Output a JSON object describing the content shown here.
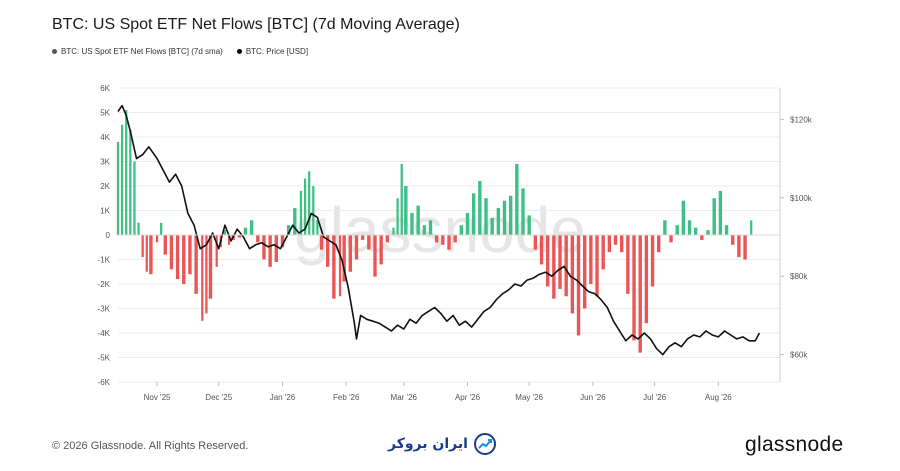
{
  "chart_data": {
    "type": "bar+line",
    "title": "BTC: US Spot ETF Net Flows [BTC] (7d Moving Average)",
    "legend": [
      {
        "label": "BTC: US Spot ETF Net Flows [BTC] (7d sma)",
        "color": "#555555"
      },
      {
        "label": "BTC: Price [USD]",
        "color": "#000000"
      }
    ],
    "left_axis": {
      "ticks": [
        "6K",
        "5K",
        "4K",
        "3K",
        "2K",
        "1K",
        "0",
        "-1K",
        "-2K",
        "-3K",
        "-4K",
        "-5K",
        "-6K"
      ],
      "ylim": [
        -6000,
        6000
      ]
    },
    "right_axis": {
      "ticks": [
        "$120k",
        "$100k",
        "$80k",
        "$60k"
      ],
      "ylim": [
        53000,
        128000
      ]
    },
    "x_ticks": [
      "Nov '25",
      "Dec '25",
      "Jan '26",
      "Feb '26",
      "Mar '26",
      "Apr '26",
      "May '26",
      "Jun '26",
      "Jul '26",
      "Aug '26"
    ],
    "x_range": [
      "2025-10-13",
      "2026-08-31"
    ],
    "colors": {
      "positive": "#3dbf86",
      "negative": "#ea5656",
      "price": "#111111"
    },
    "net_flows_7d_sma": [
      [
        "2025-10-13",
        3800
      ],
      [
        "2025-10-15",
        4500
      ],
      [
        "2025-10-17",
        5100
      ],
      [
        "2025-10-19",
        4300
      ],
      [
        "2025-10-21",
        3000
      ],
      [
        "2025-10-23",
        500
      ],
      [
        "2025-10-25",
        -900
      ],
      [
        "2025-10-27",
        -1500
      ],
      [
        "2025-10-29",
        -1600
      ],
      [
        "2025-11-01",
        -300
      ],
      [
        "2025-11-03",
        500
      ],
      [
        "2025-11-05",
        -800
      ],
      [
        "2025-11-08",
        -1400
      ],
      [
        "2025-11-11",
        -1800
      ],
      [
        "2025-11-14",
        -2000
      ],
      [
        "2025-11-17",
        -1600
      ],
      [
        "2025-11-20",
        -2400
      ],
      [
        "2025-11-23",
        -3500
      ],
      [
        "2025-11-25",
        -3200
      ],
      [
        "2025-11-27",
        -2600
      ],
      [
        "2025-11-30",
        -1300
      ],
      [
        "2025-12-02",
        -500
      ],
      [
        "2025-12-04",
        200
      ],
      [
        "2025-12-06",
        -400
      ],
      [
        "2025-12-08",
        -200
      ],
      [
        "2025-12-11",
        -100
      ],
      [
        "2025-12-14",
        300
      ],
      [
        "2025-12-17",
        600
      ],
      [
        "2025-12-20",
        -300
      ],
      [
        "2025-12-23",
        -1000
      ],
      [
        "2025-12-26",
        -1300
      ],
      [
        "2025-12-29",
        -1100
      ],
      [
        "2026-01-01",
        -500
      ],
      [
        "2026-01-04",
        400
      ],
      [
        "2026-01-07",
        1100
      ],
      [
        "2026-01-10",
        1800
      ],
      [
        "2026-01-12",
        2300
      ],
      [
        "2026-01-14",
        2600
      ],
      [
        "2026-01-16",
        2000
      ],
      [
        "2026-01-18",
        600
      ],
      [
        "2026-01-20",
        -600
      ],
      [
        "2026-01-23",
        -1300
      ],
      [
        "2026-01-26",
        -2600
      ],
      [
        "2026-01-29",
        -2500
      ],
      [
        "2026-01-31",
        -1900
      ],
      [
        "2026-02-03",
        -1500
      ],
      [
        "2026-02-06",
        -1000
      ],
      [
        "2026-02-09",
        -200
      ],
      [
        "2026-02-12",
        -600
      ],
      [
        "2026-02-15",
        -1700
      ],
      [
        "2026-02-18",
        -1200
      ],
      [
        "2026-02-21",
        -300
      ],
      [
        "2026-02-24",
        300
      ],
      [
        "2026-02-26",
        1500
      ],
      [
        "2026-02-28",
        2900
      ],
      [
        "2026-03-02",
        2000
      ],
      [
        "2026-03-05",
        900
      ],
      [
        "2026-03-08",
        1200
      ],
      [
        "2026-03-11",
        400
      ],
      [
        "2026-03-14",
        600
      ],
      [
        "2026-03-17",
        -300
      ],
      [
        "2026-03-20",
        -400
      ],
      [
        "2026-03-23",
        -600
      ],
      [
        "2026-03-26",
        -300
      ],
      [
        "2026-03-29",
        400
      ],
      [
        "2026-04-01",
        900
      ],
      [
        "2026-04-04",
        1700
      ],
      [
        "2026-04-07",
        2200
      ],
      [
        "2026-04-10",
        1500
      ],
      [
        "2026-04-13",
        700
      ],
      [
        "2026-04-16",
        1100
      ],
      [
        "2026-04-19",
        1400
      ],
      [
        "2026-04-22",
        1600
      ],
      [
        "2026-04-25",
        2900
      ],
      [
        "2026-04-28",
        1900
      ],
      [
        "2026-05-01",
        800
      ],
      [
        "2026-05-04",
        -600
      ],
      [
        "2026-05-07",
        -1200
      ],
      [
        "2026-05-10",
        -2100
      ],
      [
        "2026-05-13",
        -2600
      ],
      [
        "2026-05-16",
        -2200
      ],
      [
        "2026-05-19",
        -2500
      ],
      [
        "2026-05-22",
        -3200
      ],
      [
        "2026-05-25",
        -4100
      ],
      [
        "2026-05-28",
        -3000
      ],
      [
        "2026-05-31",
        -2000
      ],
      [
        "2026-06-03",
        -2500
      ],
      [
        "2026-06-06",
        -1400
      ],
      [
        "2026-06-09",
        -700
      ],
      [
        "2026-06-12",
        -400
      ],
      [
        "2026-06-15",
        -700
      ],
      [
        "2026-06-18",
        -2400
      ],
      [
        "2026-06-21",
        -4300
      ],
      [
        "2026-06-24",
        -4800
      ],
      [
        "2026-06-27",
        -3600
      ],
      [
        "2026-06-30",
        -2100
      ],
      [
        "2026-07-03",
        -700
      ],
      [
        "2026-07-06",
        600
      ],
      [
        "2026-07-09",
        -300
      ],
      [
        "2026-07-12",
        400
      ],
      [
        "2026-07-15",
        1400
      ],
      [
        "2026-07-18",
        600
      ],
      [
        "2026-07-21",
        300
      ],
      [
        "2026-07-24",
        -200
      ],
      [
        "2026-07-27",
        200
      ],
      [
        "2026-07-30",
        1500
      ],
      [
        "2026-08-02",
        1800
      ],
      [
        "2026-08-05",
        400
      ],
      [
        "2026-08-08",
        -400
      ],
      [
        "2026-08-11",
        -900
      ],
      [
        "2026-08-14",
        -1000
      ],
      [
        "2026-08-17",
        600
      ]
    ],
    "price_usd": [
      [
        "2025-10-13",
        122000
      ],
      [
        "2025-10-15",
        123500
      ],
      [
        "2025-10-17",
        121000
      ],
      [
        "2025-10-19",
        117000
      ],
      [
        "2025-10-22",
        110000
      ],
      [
        "2025-10-25",
        111000
      ],
      [
        "2025-10-28",
        113000
      ],
      [
        "2025-11-01",
        110000
      ],
      [
        "2025-11-04",
        107000
      ],
      [
        "2025-11-07",
        104000
      ],
      [
        "2025-11-10",
        106000
      ],
      [
        "2025-11-13",
        103000
      ],
      [
        "2025-11-16",
        96000
      ],
      [
        "2025-11-19",
        93000
      ],
      [
        "2025-11-22",
        87000
      ],
      [
        "2025-11-25",
        88000
      ],
      [
        "2025-11-28",
        91000
      ],
      [
        "2025-12-01",
        87000
      ],
      [
        "2025-12-04",
        93000
      ],
      [
        "2025-12-07",
        89000
      ],
      [
        "2025-12-10",
        92000
      ],
      [
        "2025-12-13",
        90000
      ],
      [
        "2025-12-16",
        87000
      ],
      [
        "2025-12-19",
        88000
      ],
      [
        "2025-12-22",
        88500
      ],
      [
        "2025-12-25",
        87500
      ],
      [
        "2025-12-28",
        88000
      ],
      [
        "2025-12-31",
        87000
      ],
      [
        "2026-01-03",
        90000
      ],
      [
        "2026-01-06",
        93000
      ],
      [
        "2026-01-09",
        91000
      ],
      [
        "2026-01-12",
        92000
      ],
      [
        "2026-01-15",
        96000
      ],
      [
        "2026-01-18",
        95000
      ],
      [
        "2026-01-21",
        90000
      ],
      [
        "2026-01-24",
        89000
      ],
      [
        "2026-01-27",
        88000
      ],
      [
        "2026-01-30",
        84000
      ],
      [
        "2026-02-02",
        77000
      ],
      [
        "2026-02-05",
        68000
      ],
      [
        "2026-02-06",
        64000
      ],
      [
        "2026-02-08",
        70000
      ],
      [
        "2026-02-11",
        69000
      ],
      [
        "2026-02-14",
        68500
      ],
      [
        "2026-02-17",
        68000
      ],
      [
        "2026-02-20",
        67000
      ],
      [
        "2026-02-23",
        66000
      ],
      [
        "2026-02-26",
        67500
      ],
      [
        "2026-03-01",
        66500
      ],
      [
        "2026-03-04",
        69000
      ],
      [
        "2026-03-07",
        68000
      ],
      [
        "2026-03-10",
        70000
      ],
      [
        "2026-03-13",
        71000
      ],
      [
        "2026-03-16",
        72000
      ],
      [
        "2026-03-19",
        70500
      ],
      [
        "2026-03-22",
        68500
      ],
      [
        "2026-03-25",
        70000
      ],
      [
        "2026-03-28",
        67500
      ],
      [
        "2026-03-31",
        68500
      ],
      [
        "2026-04-03",
        67000
      ],
      [
        "2026-04-06",
        69000
      ],
      [
        "2026-04-09",
        71000
      ],
      [
        "2026-04-12",
        72000
      ],
      [
        "2026-04-15",
        74000
      ],
      [
        "2026-04-18",
        75500
      ],
      [
        "2026-04-21",
        76500
      ],
      [
        "2026-04-24",
        78000
      ],
      [
        "2026-04-27",
        77500
      ],
      [
        "2026-04-30",
        79000
      ],
      [
        "2026-05-03",
        79500
      ],
      [
        "2026-05-06",
        80500
      ],
      [
        "2026-05-09",
        81000
      ],
      [
        "2026-05-12",
        80000
      ],
      [
        "2026-05-15",
        81500
      ],
      [
        "2026-05-18",
        82500
      ],
      [
        "2026-05-21",
        80000
      ],
      [
        "2026-05-24",
        79000
      ],
      [
        "2026-05-27",
        77500
      ],
      [
        "2026-05-30",
        76000
      ],
      [
        "2026-06-02",
        75500
      ],
      [
        "2026-06-05",
        74000
      ],
      [
        "2026-06-08",
        72000
      ],
      [
        "2026-06-11",
        68500
      ],
      [
        "2026-06-14",
        66000
      ],
      [
        "2026-06-17",
        63500
      ],
      [
        "2026-06-20",
        65000
      ],
      [
        "2026-06-23",
        64000
      ],
      [
        "2026-06-26",
        65500
      ],
      [
        "2026-06-29",
        64000
      ],
      [
        "2026-07-02",
        61500
      ],
      [
        "2026-07-05",
        60000
      ],
      [
        "2026-07-08",
        62000
      ],
      [
        "2026-07-11",
        63000
      ],
      [
        "2026-07-14",
        62000
      ],
      [
        "2026-07-17",
        64000
      ],
      [
        "2026-07-20",
        65000
      ],
      [
        "2026-07-23",
        64500
      ],
      [
        "2026-07-26",
        66000
      ],
      [
        "2026-07-29",
        65000
      ],
      [
        "2026-08-01",
        64500
      ],
      [
        "2026-08-04",
        66000
      ],
      [
        "2026-08-07",
        65000
      ],
      [
        "2026-08-10",
        64000
      ],
      [
        "2026-08-13",
        64500
      ],
      [
        "2026-08-16",
        63500
      ],
      [
        "2026-08-19",
        63500
      ],
      [
        "2026-08-21",
        65500
      ]
    ]
  },
  "footer": {
    "copyright": "© 2026 Glassnode. All Rights Reserved.",
    "center_brand": "ایران بروکر",
    "right_brand": "glassnode"
  },
  "watermark": "glassnode"
}
